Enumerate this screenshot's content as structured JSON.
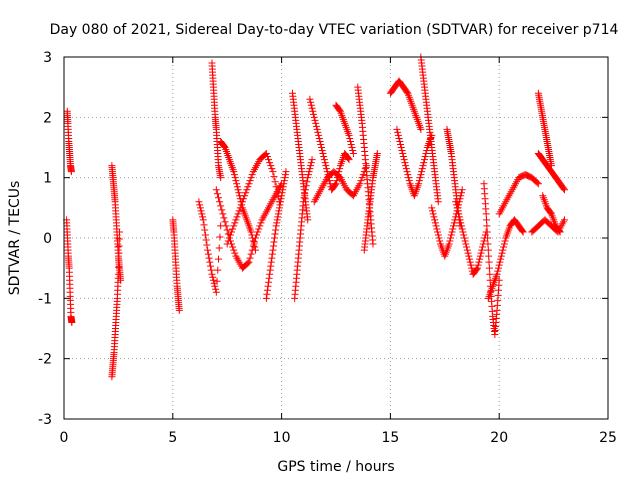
{
  "chart_data": {
    "type": "scatter",
    "title": "Day 080 of 2021, Sidereal Day-to-day VTEC variation (SDTVAR) for receiver p714",
    "xlabel": "GPS time / hours",
    "ylabel": "SDTVAR / TECUs",
    "xlim": [
      0,
      25
    ],
    "ylim": [
      -3,
      3
    ],
    "xticks": [
      0,
      5,
      10,
      15,
      20,
      25
    ],
    "yticks": [
      -3,
      -2,
      -1,
      0,
      1,
      2,
      3
    ],
    "grid": true,
    "marker": "plus",
    "color": "#ff0000",
    "segments": [
      {
        "x": [
          0.15,
          0.18,
          0.22,
          0.26,
          0.3,
          0.34
        ],
        "y": [
          2.1,
          1.9,
          1.6,
          1.4,
          1.2,
          1.1
        ]
      },
      {
        "x": [
          0.12,
          0.16,
          0.2,
          0.24,
          0.28,
          0.32,
          0.36
        ],
        "y": [
          0.3,
          0.0,
          -0.3,
          -0.5,
          -0.9,
          -1.3,
          -1.4
        ]
      },
      {
        "x": [
          2.2,
          2.25,
          2.3,
          2.35,
          2.4,
          2.45,
          2.5,
          2.55,
          2.6
        ],
        "y": [
          1.2,
          1.0,
          0.8,
          0.6,
          0.3,
          0.0,
          -0.3,
          -0.5,
          -0.7
        ]
      },
      {
        "x": [
          2.2,
          2.25,
          2.3,
          2.35,
          2.4,
          2.45,
          2.5,
          2.55
        ],
        "y": [
          -2.3,
          -2.1,
          -1.9,
          -1.6,
          -1.3,
          -1.0,
          -0.6,
          0.1
        ]
      },
      {
        "x": [
          5.0,
          5.05,
          5.1,
          5.15,
          5.2,
          5.25,
          5.3
        ],
        "y": [
          0.3,
          0.1,
          -0.2,
          -0.5,
          -0.8,
          -1.0,
          -1.2
        ]
      },
      {
        "x": [
          6.2,
          6.4,
          6.6,
          6.8,
          7.0,
          7.2
        ],
        "y": [
          0.6,
          0.3,
          -0.2,
          -0.6,
          -0.9,
          0.2
        ]
      },
      {
        "x": [
          6.8,
          6.85,
          6.9,
          6.95,
          7.0,
          7.05,
          7.1,
          7.2
        ],
        "y": [
          2.9,
          2.6,
          2.3,
          2.0,
          1.8,
          1.5,
          1.2,
          1.0
        ]
      },
      {
        "x": [
          7.2,
          7.4,
          7.6,
          7.8,
          8.0,
          8.2,
          8.4,
          8.6,
          8.8
        ],
        "y": [
          1.6,
          1.5,
          1.3,
          1.1,
          0.8,
          0.5,
          0.3,
          0.1,
          -0.2
        ]
      },
      {
        "x": [
          7.0,
          7.3,
          7.6,
          7.9,
          8.2,
          8.5,
          8.8,
          9.1,
          9.4,
          9.7,
          10.0
        ],
        "y": [
          0.8,
          0.4,
          0.0,
          -0.3,
          -0.5,
          -0.4,
          0.0,
          0.3,
          0.5,
          0.7,
          0.9
        ]
      },
      {
        "x": [
          7.5,
          7.8,
          8.1,
          8.4,
          8.7,
          9.0,
          9.3,
          9.6,
          9.9
        ],
        "y": [
          -0.1,
          0.2,
          0.5,
          0.8,
          1.1,
          1.3,
          1.4,
          1.1,
          0.6
        ]
      },
      {
        "x": [
          9.3,
          9.45,
          9.6,
          9.75,
          9.9,
          10.05,
          10.2
        ],
        "y": [
          -1.0,
          -0.6,
          -0.2,
          0.2,
          0.5,
          0.8,
          1.1
        ]
      },
      {
        "x": [
          10.5,
          10.6,
          10.7,
          10.8,
          10.9,
          11.0,
          11.1,
          11.2
        ],
        "y": [
          2.4,
          2.1,
          1.8,
          1.5,
          1.2,
          0.9,
          0.6,
          0.3
        ]
      },
      {
        "x": [
          10.6,
          10.7,
          10.8,
          10.9,
          11.0,
          11.2,
          11.4
        ],
        "y": [
          -1.0,
          -0.6,
          -0.2,
          0.2,
          0.6,
          1.0,
          1.3
        ]
      },
      {
        "x": [
          11.3,
          11.5,
          11.7,
          11.9,
          12.1,
          12.3,
          12.5,
          12.7,
          12.9,
          13.1
        ],
        "y": [
          2.3,
          2.0,
          1.7,
          1.4,
          1.1,
          0.8,
          0.9,
          1.2,
          1.4,
          1.3
        ]
      },
      {
        "x": [
          11.5,
          11.8,
          12.1,
          12.4,
          12.7,
          13.0,
          13.3,
          13.6,
          13.9
        ],
        "y": [
          0.6,
          0.8,
          1.0,
          1.1,
          1.0,
          0.8,
          0.7,
          0.9,
          1.2
        ]
      },
      {
        "x": [
          12.5,
          12.7,
          12.9,
          13.1,
          13.3
        ],
        "y": [
          2.2,
          2.1,
          1.9,
          1.7,
          1.4
        ]
      },
      {
        "x": [
          13.5,
          13.6,
          13.7,
          13.8,
          13.9,
          14.0,
          14.1,
          14.2
        ],
        "y": [
          2.5,
          2.2,
          1.9,
          1.5,
          1.1,
          0.7,
          0.3,
          -0.1
        ]
      },
      {
        "x": [
          13.8,
          13.9,
          14.0,
          14.1,
          14.2,
          14.3,
          14.4
        ],
        "y": [
          -0.2,
          0.1,
          0.4,
          0.7,
          1.0,
          1.2,
          1.4
        ]
      },
      {
        "x": [
          15.0,
          15.2,
          15.4,
          15.6,
          15.8,
          16.0,
          16.2,
          16.4
        ],
        "y": [
          2.4,
          2.5,
          2.6,
          2.5,
          2.4,
          2.2,
          2.0,
          1.8
        ]
      },
      {
        "x": [
          15.3,
          15.5,
          15.7,
          15.9,
          16.1,
          16.3,
          16.5,
          16.7,
          16.9
        ],
        "y": [
          1.8,
          1.5,
          1.2,
          0.9,
          0.7,
          0.9,
          1.2,
          1.5,
          1.7
        ]
      },
      {
        "x": [
          16.4,
          16.5,
          16.6,
          16.7,
          16.8,
          16.9,
          17.0,
          17.1,
          17.2
        ],
        "y": [
          3.0,
          2.7,
          2.4,
          2.1,
          1.8,
          1.5,
          1.2,
          0.9,
          0.6
        ]
      },
      {
        "x": [
          16.9,
          17.1,
          17.3,
          17.5,
          17.7,
          17.9,
          18.1,
          18.3
        ],
        "y": [
          0.5,
          0.2,
          -0.1,
          -0.3,
          -0.1,
          0.2,
          0.5,
          0.8
        ]
      },
      {
        "x": [
          17.6,
          17.7,
          17.8,
          17.9,
          18.0,
          18.1,
          18.2
        ],
        "y": [
          1.8,
          1.6,
          1.4,
          1.1,
          0.8,
          0.5,
          0.2
        ]
      },
      {
        "x": [
          18.0,
          18.2,
          18.4,
          18.6,
          18.8,
          19.0,
          19.2,
          19.4
        ],
        "y": [
          0.6,
          0.3,
          0.0,
          -0.3,
          -0.6,
          -0.5,
          -0.2,
          0.1
        ]
      },
      {
        "x": [
          19.3,
          19.4,
          19.5,
          19.6,
          19.7,
          19.8,
          19.9,
          20.0
        ],
        "y": [
          0.9,
          0.4,
          -0.2,
          -0.8,
          -1.3,
          -1.6,
          -1.2,
          -0.7
        ]
      },
      {
        "x": [
          19.5,
          19.7,
          19.9,
          20.1,
          20.3,
          20.5,
          20.7,
          20.9,
          21.1
        ],
        "y": [
          -1.0,
          -0.8,
          -0.6,
          -0.3,
          0.0,
          0.2,
          0.3,
          0.2,
          0.1
        ]
      },
      {
        "x": [
          20.0,
          20.3,
          20.6,
          20.9,
          21.2,
          21.5,
          21.8
        ],
        "y": [
          0.4,
          0.6,
          0.8,
          1.0,
          1.05,
          1.0,
          0.9
        ]
      },
      {
        "x": [
          21.8,
          21.9,
          22.0,
          22.1,
          22.2,
          22.3,
          22.4
        ],
        "y": [
          2.4,
          2.2,
          2.0,
          1.8,
          1.6,
          1.4,
          1.2
        ]
      },
      {
        "x": [
          21.8,
          22.0,
          22.2,
          22.4,
          22.6,
          22.8,
          23.0
        ],
        "y": [
          1.4,
          1.3,
          1.2,
          1.1,
          1.0,
          0.9,
          0.8
        ]
      },
      {
        "x": [
          21.5,
          21.8,
          22.1,
          22.4,
          22.7,
          23.0
        ],
        "y": [
          0.1,
          0.2,
          0.3,
          0.2,
          0.1,
          0.3
        ]
      },
      {
        "x": [
          22.0,
          22.2,
          22.4,
          22.6,
          22.8
        ],
        "y": [
          0.7,
          0.5,
          0.4,
          0.2,
          0.1
        ]
      }
    ]
  }
}
